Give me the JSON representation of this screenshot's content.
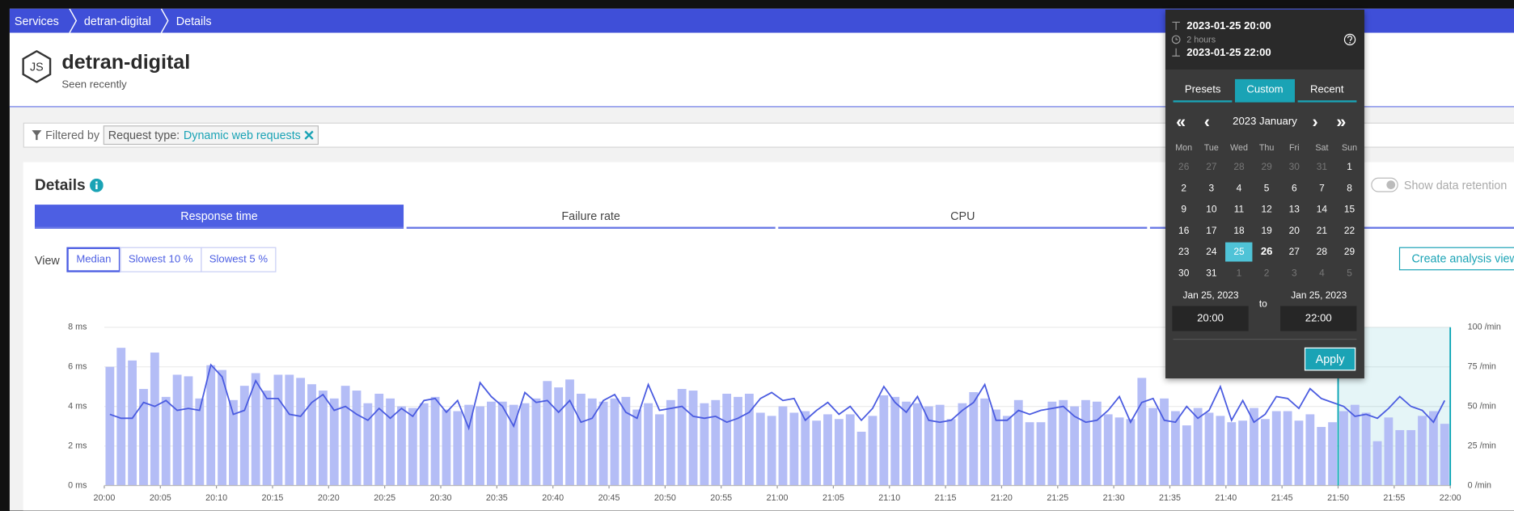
{
  "breadcrumb": [
    "Services",
    "detran-digital",
    "Details"
  ],
  "header": {
    "icon_label": "JS",
    "title": "detran-digital",
    "subtitle": "Seen recently"
  },
  "filter": {
    "label": "Filtered by",
    "key": "Request type:",
    "value": "Dynamic web requests"
  },
  "details": {
    "title": "Details",
    "tabs": [
      "Response time",
      "Failure rate",
      "CPU"
    ],
    "view_label": "View",
    "views": [
      "Median",
      "Slowest 10 %",
      "Slowest 5 %"
    ],
    "retention": "Show data retention",
    "button": "Create analysis view"
  },
  "chart_data": {
    "type": "combo",
    "xlim": [
      0,
      120
    ],
    "xticks": [
      {
        "value": 0,
        "label": "20:00"
      },
      {
        "value": 5,
        "label": "20:05"
      },
      {
        "value": 10,
        "label": "20:10"
      },
      {
        "value": 15,
        "label": "20:15"
      },
      {
        "value": 20,
        "label": "20:20"
      },
      {
        "value": 25,
        "label": "20:25"
      },
      {
        "value": 30,
        "label": "20:30"
      },
      {
        "value": 35,
        "label": "20:35"
      },
      {
        "value": 40,
        "label": "20:40"
      },
      {
        "value": 45,
        "label": "20:45"
      },
      {
        "value": 50,
        "label": "20:50"
      },
      {
        "value": 55,
        "label": "20:55"
      },
      {
        "value": 60,
        "label": "21:00"
      },
      {
        "value": 65,
        "label": "21:05"
      },
      {
        "value": 70,
        "label": "21:10"
      },
      {
        "value": 75,
        "label": "21:15"
      },
      {
        "value": 80,
        "label": "21:20"
      },
      {
        "value": 85,
        "label": "21:25"
      },
      {
        "value": 90,
        "label": "21:30"
      },
      {
        "value": 95,
        "label": "21:35"
      },
      {
        "value": 100,
        "label": "21:40"
      },
      {
        "value": 105,
        "label": "21:45"
      },
      {
        "value": 110,
        "label": "21:50"
      },
      {
        "value": 115,
        "label": "21:55"
      },
      {
        "value": 120,
        "label": "22:00"
      }
    ],
    "ylim": [
      0,
      8
    ],
    "yticks": [
      {
        "value": 0,
        "label": "0 ms"
      },
      {
        "value": 2,
        "label": "2 ms"
      },
      {
        "value": 4,
        "label": "4 ms"
      },
      {
        "value": 6,
        "label": "6 ms"
      },
      {
        "value": 8,
        "label": "8 ms"
      }
    ],
    "y2lim": [
      0,
      100
    ],
    "y2ticks": [
      {
        "value": 0,
        "label": "0 /min"
      },
      {
        "value": 25,
        "label": "25 /min"
      },
      {
        "value": 50,
        "label": "50 /min"
      },
      {
        "value": 75,
        "label": "75 /min"
      },
      {
        "value": 100,
        "label": "100 /min"
      }
    ],
    "grid": true,
    "highlight": [
      110,
      120
    ],
    "highlight_color": "#00a1b2",
    "series": [
      {
        "kind": "bar",
        "axis": "y2",
        "color": "#b4bdf6",
        "values": [
          75,
          87,
          79,
          61,
          84,
          56,
          70,
          69,
          55,
          76,
          73,
          54,
          63,
          71,
          60,
          70,
          70,
          68,
          64,
          60,
          55,
          63,
          60,
          52,
          58,
          55,
          50,
          49,
          52,
          56,
          48,
          47,
          51,
          50,
          53,
          53,
          51,
          52,
          55,
          66,
          62,
          67,
          58,
          55,
          53,
          55,
          56,
          48,
          52,
          45,
          54,
          61,
          60,
          52,
          54,
          58,
          56,
          58,
          46,
          44,
          50,
          46,
          47,
          41,
          45,
          42,
          45,
          34,
          44,
          57,
          56,
          53,
          52,
          50,
          51,
          42,
          52,
          59,
          55,
          48,
          44,
          54,
          40,
          40,
          53,
          54,
          50,
          54,
          53,
          45,
          43,
          42,
          68,
          49,
          55,
          47,
          38,
          49,
          46,
          44,
          40,
          41,
          49,
          42,
          47,
          47,
          41,
          45,
          37,
          40,
          47,
          51,
          46,
          28,
          43,
          35,
          35,
          44,
          47,
          39
        ]
      },
      {
        "kind": "line",
        "axis": "y",
        "color": "#4a5be0",
        "values": [
          3.6,
          3.4,
          3.4,
          4.2,
          4.0,
          4.3,
          3.8,
          3.9,
          3.8,
          6.1,
          5.5,
          3.6,
          3.8,
          5.3,
          4.4,
          4.4,
          3.6,
          3.5,
          4.2,
          4.6,
          3.8,
          4.0,
          3.6,
          3.3,
          3.9,
          3.4,
          3.9,
          3.5,
          4.3,
          4.4,
          3.7,
          4.3,
          2.9,
          5.2,
          4.5,
          4.0,
          3.0,
          4.7,
          4.2,
          4.3,
          3.7,
          4.3,
          3.2,
          3.4,
          4.3,
          4.6,
          3.7,
          3.4,
          5.1,
          3.8,
          3.9,
          4.0,
          3.5,
          3.4,
          3.5,
          3.2,
          3.4,
          3.7,
          4.4,
          4.7,
          4.3,
          4.4,
          3.3,
          3.8,
          4.2,
          3.6,
          4.0,
          3.3,
          3.9,
          5.0,
          4.2,
          3.7,
          4.5,
          3.3,
          3.2,
          3.3,
          3.8,
          4.2,
          5.1,
          3.3,
          3.3,
          3.8,
          3.6,
          3.8,
          3.9,
          4.0,
          3.5,
          3.2,
          3.3,
          3.8,
          4.5,
          3.2,
          4.2,
          4.4,
          3.3,
          3.2,
          4.0,
          3.4,
          3.8,
          5.0,
          3.3,
          4.3,
          3.2,
          3.6,
          4.5,
          4.4,
          3.9,
          4.9,
          4.4,
          4.2,
          4.0,
          3.5,
          3.6,
          3.4,
          3.9,
          4.5,
          4.0,
          3.8,
          3.2,
          4.3
        ]
      }
    ]
  },
  "calendar": {
    "start": "2023-01-25 20:00",
    "duration": "2 hours",
    "end": "2023-01-25 22:00",
    "tabs": [
      "Presets",
      "Custom",
      "Recent"
    ],
    "active_tab": 1,
    "month": "2023 January",
    "weekdays": [
      "Mon",
      "Tue",
      "Wed",
      "Thu",
      "Fri",
      "Sat",
      "Sun"
    ],
    "weeks": [
      [
        26,
        27,
        28,
        29,
        30,
        31,
        1
      ],
      [
        2,
        3,
        4,
        5,
        6,
        7,
        8
      ],
      [
        9,
        10,
        11,
        12,
        13,
        14,
        15
      ],
      [
        16,
        17,
        18,
        19,
        20,
        21,
        22
      ],
      [
        23,
        24,
        25,
        26,
        27,
        28,
        29
      ],
      [
        30,
        31,
        1,
        2,
        3,
        4,
        5
      ]
    ],
    "selected": 25,
    "today": 26,
    "from_date": "Jan 25, 2023",
    "to_label": "to",
    "to_date": "Jan 25, 2023",
    "from_time": "20:00",
    "to_time": "22:00",
    "apply": "Apply"
  }
}
